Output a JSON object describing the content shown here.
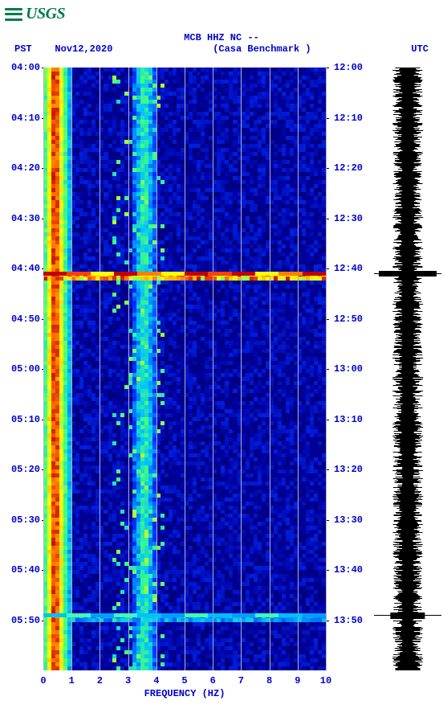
{
  "logo": {
    "text": "USGS"
  },
  "header": {
    "title_line1": "MCB HHZ NC --",
    "title_line2": "(Casa Benchmark )",
    "left_tz": "PST",
    "date": "Nov12,2020",
    "right_tz": "UTC"
  },
  "chart": {
    "type": "spectrogram",
    "xlabel": "FREQUENCY (HZ)",
    "xlim": [
      0,
      10
    ],
    "xticks": [
      0,
      1,
      2,
      3,
      4,
      5,
      6,
      7,
      8,
      9,
      10
    ],
    "y_pst_start": "04:00",
    "y_utc_start": "12:00",
    "y_minutes_span": 120,
    "y_tick_step_min": 10,
    "pst_ticks": [
      "04:00",
      "04:10",
      "04:20",
      "04:30",
      "04:40",
      "04:50",
      "05:00",
      "05:10",
      "05:20",
      "05:30",
      "05:40",
      "05:50"
    ],
    "utc_ticks": [
      "12:00",
      "12:10",
      "12:20",
      "12:30",
      "12:40",
      "12:50",
      "13:00",
      "13:10",
      "13:20",
      "13:30",
      "13:40",
      "13:50"
    ],
    "grid_color": "#b0b0c0",
    "background_color": "#ffffff",
    "tick_color": "#0000cc",
    "tick_fontsize": 12,
    "colormap_stops": [
      {
        "v": 0.0,
        "c": "#000040"
      },
      {
        "v": 0.2,
        "c": "#0000a0"
      },
      {
        "v": 0.35,
        "c": "#0030ff"
      },
      {
        "v": 0.5,
        "c": "#00c0ff"
      },
      {
        "v": 0.65,
        "c": "#40ff80"
      },
      {
        "v": 0.8,
        "c": "#ffff00"
      },
      {
        "v": 0.92,
        "c": "#ff6000"
      },
      {
        "v": 1.0,
        "c": "#c00000"
      }
    ],
    "low_freq_ridge": {
      "hz_center": 0.35,
      "hz_width": 0.55,
      "intensity": 1.0,
      "colors_inner_to_outer": [
        "#c00000",
        "#ff6000",
        "#ffff00",
        "#40ff80",
        "#00c0ff"
      ]
    },
    "secondary_ridge": {
      "hz_center": 3.5,
      "hz_width": 0.4,
      "color": "#ffb000"
    },
    "events": [
      {
        "minute": 41,
        "intensity": 1.0,
        "type": "broadband",
        "segment_colors": [
          "#c00000",
          "#ff4000",
          "#ffff00",
          "#c00000",
          "#ff8000",
          "#ffff00",
          "#c00000",
          "#ff4000",
          "#c00000",
          "#ffff00",
          "#ff8000",
          "#c00000"
        ]
      },
      {
        "minute": 109,
        "intensity": 0.55,
        "type": "broadband",
        "segment_colors": [
          "#00c0ff",
          "#40ffb0",
          "#00a0ff",
          "#40ffb0",
          "#00c0ff",
          "#00a0ff",
          "#40ffb0",
          "#00c0ff",
          "#00a0ff",
          "#40ffb0",
          "#00c0ff",
          "#00a0ff"
        ]
      }
    ],
    "noise_seed_rows": 150,
    "noise_base_color": "#0010a8",
    "noise_variation_colors": [
      "#000060",
      "#0018c0",
      "#0030d8",
      "#0020b0",
      "#000890"
    ]
  },
  "waveform": {
    "color": "#000000",
    "baseline_amplitude": 0.35,
    "spikes": [
      {
        "minute": 41,
        "amplitude": 1.0
      },
      {
        "minute": 109,
        "amplitude": 0.6
      }
    ]
  }
}
